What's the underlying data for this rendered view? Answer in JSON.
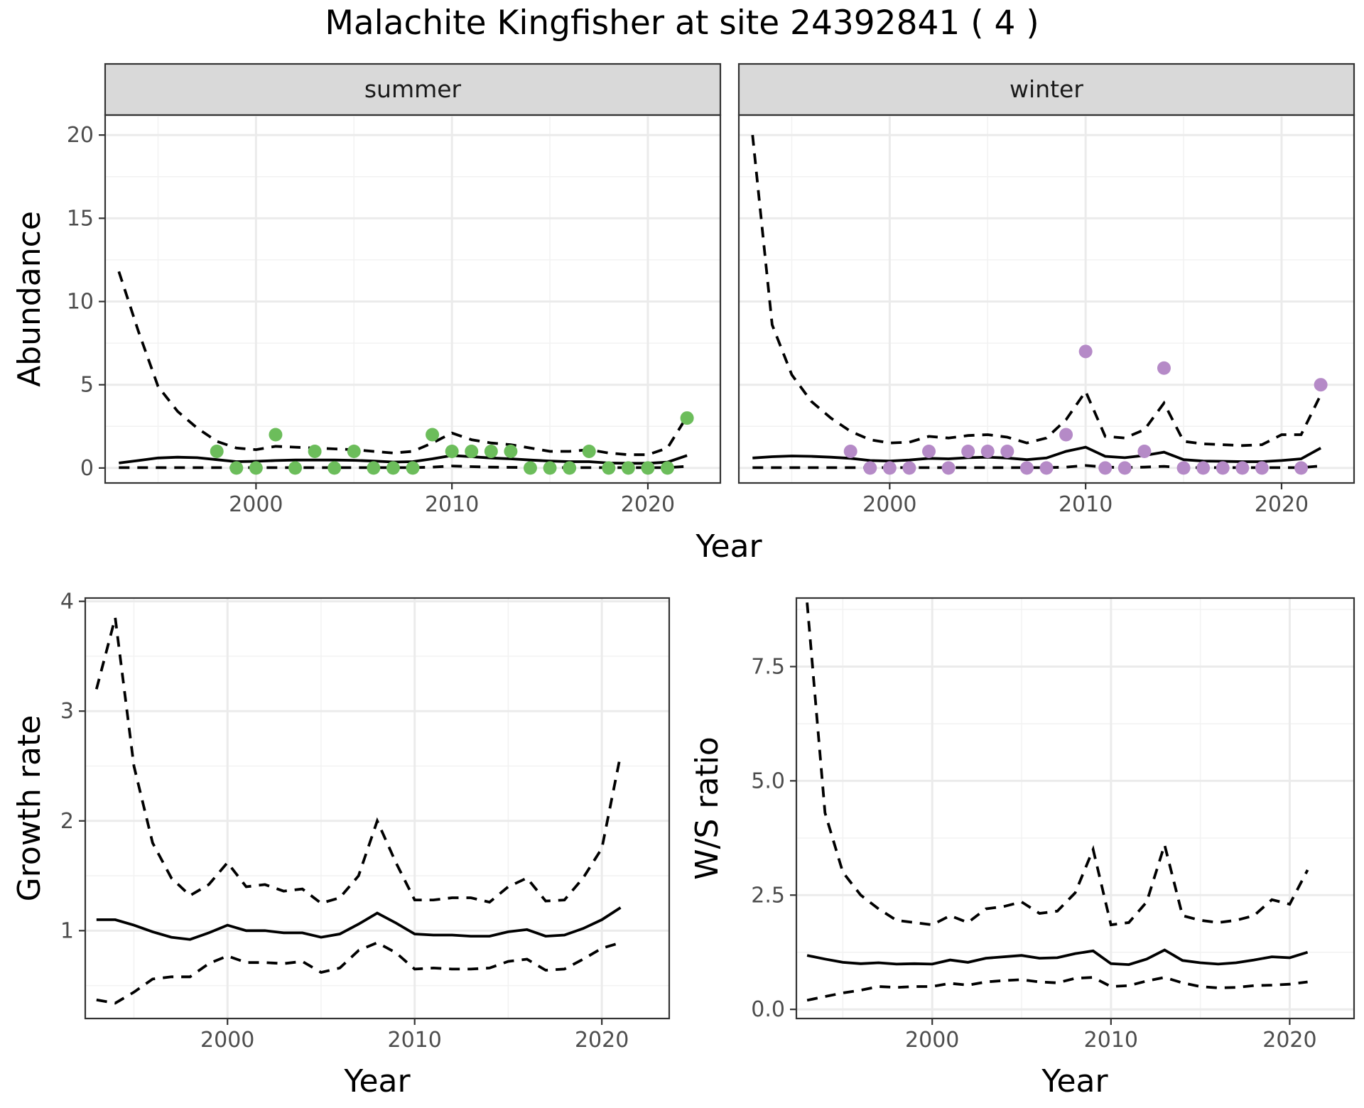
{
  "title": "Malachite Kingfisher at site 24392841 ( 4 )",
  "colors": {
    "summer": "#6cbd5b",
    "winter": "#b58ac7"
  },
  "chart_data": [
    {
      "type": "line",
      "panel": "summer",
      "strip_label": "summer",
      "xlabel": "Year",
      "ylabel": "Abundance",
      "xlim": [
        1992.3,
        2023.7
      ],
      "ylim": [
        -0.9,
        21.2
      ],
      "xticks": [
        2000,
        2010,
        2020
      ],
      "yticks": [
        0,
        5,
        10,
        15,
        20
      ],
      "ytick_labels": [
        "0",
        "5",
        "10",
        "15",
        "20"
      ],
      "observations": {
        "x": [
          1998,
          1999,
          2000,
          2001,
          2002,
          2003,
          2004,
          2005,
          2006,
          2007,
          2008,
          2009,
          2010,
          2011,
          2012,
          2013,
          2014,
          2015,
          2016,
          2017,
          2018,
          2019,
          2020,
          2021,
          2022
        ],
        "y": [
          1,
          0,
          0,
          2,
          0,
          1,
          0,
          1,
          0,
          0,
          0,
          2,
          1,
          1,
          1,
          1,
          0,
          0,
          0,
          1,
          0,
          0,
          0,
          0,
          3
        ]
      },
      "series": [
        {
          "role": "estimate",
          "x": [
            1993,
            1994,
            1995,
            1996,
            1997,
            1998,
            1999,
            2000,
            2001,
            2002,
            2003,
            2004,
            2005,
            2006,
            2007,
            2008,
            2009,
            2010,
            2011,
            2012,
            2013,
            2014,
            2015,
            2016,
            2017,
            2018,
            2019,
            2020,
            2021,
            2022
          ],
          "y": [
            0.3,
            0.45,
            0.6,
            0.65,
            0.62,
            0.5,
            0.38,
            0.4,
            0.45,
            0.48,
            0.48,
            0.48,
            0.46,
            0.42,
            0.36,
            0.38,
            0.55,
            0.75,
            0.68,
            0.6,
            0.55,
            0.48,
            0.42,
            0.38,
            0.38,
            0.3,
            0.28,
            0.28,
            0.35,
            0.75
          ]
        },
        {
          "role": "upper",
          "x": [
            1993,
            1994,
            1995,
            1996,
            1997,
            1998,
            1999,
            2000,
            2001,
            2002,
            2003,
            2004,
            2005,
            2006,
            2007,
            2008,
            2009,
            2010,
            2011,
            2012,
            2013,
            2014,
            2015,
            2016,
            2017,
            2018,
            2019,
            2020,
            2021,
            2022
          ],
          "y": [
            11.8,
            8.2,
            4.9,
            3.4,
            2.4,
            1.6,
            1.2,
            1.1,
            1.3,
            1.25,
            1.2,
            1.15,
            1.1,
            1.0,
            0.9,
            1.0,
            1.5,
            2.1,
            1.7,
            1.5,
            1.4,
            1.2,
            1.0,
            1.0,
            1.1,
            0.9,
            0.8,
            0.8,
            1.2,
            3.1
          ]
        },
        {
          "role": "lower",
          "x": [
            1993,
            1994,
            1995,
            1996,
            1997,
            1998,
            1999,
            2000,
            2001,
            2002,
            2003,
            2004,
            2005,
            2006,
            2007,
            2008,
            2009,
            2010,
            2011,
            2012,
            2013,
            2014,
            2015,
            2016,
            2017,
            2018,
            2019,
            2020,
            2021,
            2022
          ],
          "y": [
            0.02,
            0.02,
            0.02,
            0.02,
            0.02,
            0.02,
            0.02,
            0.02,
            0.02,
            0.02,
            0.02,
            0.02,
            0.02,
            0.02,
            0.02,
            0.02,
            0.05,
            0.12,
            0.08,
            0.05,
            0.04,
            0.03,
            0.02,
            0.02,
            0.02,
            0.02,
            0.02,
            0.02,
            0.02,
            0.1
          ]
        }
      ]
    },
    {
      "type": "line",
      "panel": "winter",
      "strip_label": "winter",
      "xlabel": "Year",
      "ylabel": "Abundance",
      "xlim": [
        1992.3,
        2023.7
      ],
      "ylim": [
        -0.9,
        21.2
      ],
      "xticks": [
        2000,
        2010,
        2020
      ],
      "yticks": [
        0,
        5,
        10,
        15,
        20
      ],
      "ytick_labels": [
        "0",
        "5",
        "10",
        "15",
        "20"
      ],
      "observations": {
        "x": [
          1998,
          1999,
          2000,
          2001,
          2002,
          2003,
          2004,
          2005,
          2006,
          2007,
          2008,
          2009,
          2010,
          2011,
          2012,
          2013,
          2014,
          2015,
          2016,
          2017,
          2018,
          2019,
          2021,
          2022
        ],
        "y": [
          1,
          0,
          0,
          0,
          1,
          0,
          1,
          1,
          1,
          0,
          0,
          2,
          7,
          0,
          0,
          1,
          6,
          0,
          0,
          0,
          0,
          0,
          0,
          5
        ]
      },
      "series": [
        {
          "role": "estimate",
          "x": [
            1993,
            1994,
            1995,
            1996,
            1997,
            1998,
            1999,
            2000,
            2001,
            2002,
            2003,
            2004,
            2005,
            2006,
            2007,
            2008,
            2009,
            2010,
            2011,
            2012,
            2013,
            2014,
            2015,
            2016,
            2017,
            2018,
            2019,
            2020,
            2021,
            2022
          ],
          "y": [
            0.6,
            0.68,
            0.72,
            0.7,
            0.65,
            0.58,
            0.45,
            0.42,
            0.48,
            0.58,
            0.55,
            0.62,
            0.65,
            0.6,
            0.5,
            0.6,
            1.0,
            1.25,
            0.7,
            0.62,
            0.75,
            0.95,
            0.5,
            0.42,
            0.4,
            0.38,
            0.38,
            0.45,
            0.55,
            1.2
          ]
        },
        {
          "role": "upper",
          "x": [
            1993,
            1994,
            1995,
            1996,
            1997,
            1998,
            1999,
            2000,
            2001,
            2002,
            2003,
            2004,
            2005,
            2006,
            2007,
            2008,
            2009,
            2010,
            2011,
            2012,
            2013,
            2014,
            2015,
            2016,
            2017,
            2018,
            2019,
            2020,
            2021,
            2022
          ],
          "y": [
            20.0,
            8.6,
            5.6,
            4.0,
            3.0,
            2.2,
            1.7,
            1.5,
            1.55,
            1.9,
            1.8,
            1.95,
            2.0,
            1.85,
            1.5,
            1.8,
            2.9,
            4.6,
            1.9,
            1.8,
            2.3,
            3.9,
            1.6,
            1.45,
            1.4,
            1.35,
            1.4,
            2.0,
            2.0,
            4.4
          ]
        },
        {
          "role": "lower",
          "x": [
            1993,
            1994,
            1995,
            1996,
            1997,
            1998,
            1999,
            2000,
            2001,
            2002,
            2003,
            2004,
            2005,
            2006,
            2007,
            2008,
            2009,
            2010,
            2011,
            2012,
            2013,
            2014,
            2015,
            2016,
            2017,
            2018,
            2019,
            2020,
            2021,
            2022
          ],
          "y": [
            0.02,
            0.02,
            0.02,
            0.02,
            0.02,
            0.02,
            0.02,
            0.02,
            0.02,
            0.02,
            0.02,
            0.02,
            0.02,
            0.02,
            0.02,
            0.02,
            0.05,
            0.15,
            0.05,
            0.03,
            0.05,
            0.1,
            0.02,
            0.02,
            0.02,
            0.02,
            0.02,
            0.02,
            0.02,
            0.12
          ]
        }
      ]
    },
    {
      "type": "line",
      "panel": "growth",
      "xlabel": "Year",
      "ylabel": "Growth rate",
      "xlim": [
        1992.4,
        2023.6
      ],
      "ylim": [
        0.2,
        4.03
      ],
      "xticks": [
        2000,
        2010,
        2020
      ],
      "yticks": [
        1,
        2,
        3,
        4
      ],
      "ytick_labels": [
        "1",
        "2",
        "3",
        "4"
      ],
      "series": [
        {
          "role": "estimate",
          "x": [
            1993,
            1994,
            1995,
            1996,
            1997,
            1998,
            1999,
            2000,
            2001,
            2002,
            2003,
            2004,
            2005,
            2006,
            2007,
            2008,
            2009,
            2010,
            2011,
            2012,
            2013,
            2014,
            2015,
            2016,
            2017,
            2018,
            2019,
            2020,
            2021
          ],
          "y": [
            1.1,
            1.1,
            1.05,
            0.99,
            0.94,
            0.92,
            0.98,
            1.05,
            1.0,
            1.0,
            0.98,
            0.98,
            0.94,
            0.97,
            1.06,
            1.16,
            1.07,
            0.97,
            0.96,
            0.96,
            0.95,
            0.95,
            0.99,
            1.01,
            0.95,
            0.96,
            1.02,
            1.1,
            1.21
          ]
        },
        {
          "role": "upper",
          "x": [
            1993,
            1994,
            1995,
            1996,
            1997,
            1998,
            1999,
            2000,
            2001,
            2002,
            2003,
            2004,
            2005,
            2006,
            2007,
            2008,
            2009,
            2010,
            2011,
            2012,
            2013,
            2014,
            2015,
            2016,
            2017,
            2018,
            2019,
            2020,
            2021
          ],
          "y": [
            3.2,
            3.85,
            2.5,
            1.8,
            1.48,
            1.32,
            1.42,
            1.62,
            1.4,
            1.42,
            1.36,
            1.38,
            1.25,
            1.3,
            1.5,
            2.0,
            1.62,
            1.28,
            1.28,
            1.3,
            1.3,
            1.26,
            1.4,
            1.48,
            1.27,
            1.28,
            1.48,
            1.75,
            2.6
          ]
        },
        {
          "role": "lower",
          "x": [
            1993,
            1994,
            1995,
            1996,
            1997,
            1998,
            1999,
            2000,
            2001,
            2002,
            2003,
            2004,
            2005,
            2006,
            2007,
            2008,
            2009,
            2010,
            2011,
            2012,
            2013,
            2014,
            2015,
            2016,
            2017,
            2018,
            2019,
            2020,
            2021
          ],
          "y": [
            0.37,
            0.34,
            0.44,
            0.56,
            0.58,
            0.58,
            0.7,
            0.77,
            0.71,
            0.71,
            0.7,
            0.72,
            0.62,
            0.66,
            0.82,
            0.89,
            0.8,
            0.65,
            0.66,
            0.65,
            0.65,
            0.66,
            0.72,
            0.74,
            0.64,
            0.65,
            0.74,
            0.84,
            0.89
          ]
        }
      ]
    },
    {
      "type": "line",
      "panel": "ws-ratio",
      "xlabel": "Year",
      "ylabel": "W/S ratio",
      "xlim": [
        1992.4,
        2023.6
      ],
      "ylim": [
        -0.2,
        9.0
      ],
      "xticks": [
        2000,
        2010,
        2020
      ],
      "yticks": [
        0,
        2.5,
        5,
        7.5
      ],
      "ytick_labels": [
        "0.0",
        "2.5",
        "5.0",
        "7.5"
      ],
      "series": [
        {
          "role": "estimate",
          "x": [
            1993,
            1994,
            1995,
            1996,
            1997,
            1998,
            1999,
            2000,
            2001,
            2002,
            2003,
            2004,
            2005,
            2006,
            2007,
            2008,
            2009,
            2010,
            2011,
            2012,
            2013,
            2014,
            2015,
            2016,
            2017,
            2018,
            2019,
            2020,
            2021
          ],
          "y": [
            1.18,
            1.1,
            1.03,
            1.0,
            1.02,
            0.99,
            1.0,
            0.99,
            1.08,
            1.03,
            1.12,
            1.15,
            1.18,
            1.12,
            1.13,
            1.22,
            1.28,
            1.0,
            0.98,
            1.1,
            1.3,
            1.07,
            1.02,
            0.99,
            1.02,
            1.08,
            1.15,
            1.13,
            1.25
          ]
        },
        {
          "role": "upper",
          "x": [
            1993,
            1994,
            1995,
            1996,
            1997,
            1998,
            1999,
            2000,
            2001,
            2002,
            2003,
            2004,
            2005,
            2006,
            2007,
            2008,
            2009,
            2010,
            2011,
            2012,
            2013,
            2014,
            2015,
            2016,
            2017,
            2018,
            2019,
            2020,
            2021
          ],
          "y": [
            8.9,
            4.3,
            3.0,
            2.5,
            2.2,
            1.95,
            1.9,
            1.85,
            2.05,
            1.9,
            2.2,
            2.25,
            2.35,
            2.1,
            2.15,
            2.55,
            3.5,
            1.85,
            1.9,
            2.35,
            3.6,
            2.05,
            1.95,
            1.9,
            1.95,
            2.05,
            2.4,
            2.3,
            3.05
          ]
        },
        {
          "role": "lower",
          "x": [
            1993,
            1994,
            1995,
            1996,
            1997,
            1998,
            1999,
            2000,
            2001,
            2002,
            2003,
            2004,
            2005,
            2006,
            2007,
            2008,
            2009,
            2010,
            2011,
            2012,
            2013,
            2014,
            2015,
            2016,
            2017,
            2018,
            2019,
            2020,
            2021
          ],
          "y": [
            0.2,
            0.28,
            0.36,
            0.42,
            0.5,
            0.48,
            0.5,
            0.5,
            0.57,
            0.53,
            0.6,
            0.63,
            0.65,
            0.6,
            0.58,
            0.68,
            0.7,
            0.5,
            0.52,
            0.62,
            0.7,
            0.58,
            0.5,
            0.47,
            0.48,
            0.52,
            0.53,
            0.55,
            0.6
          ]
        }
      ]
    }
  ]
}
